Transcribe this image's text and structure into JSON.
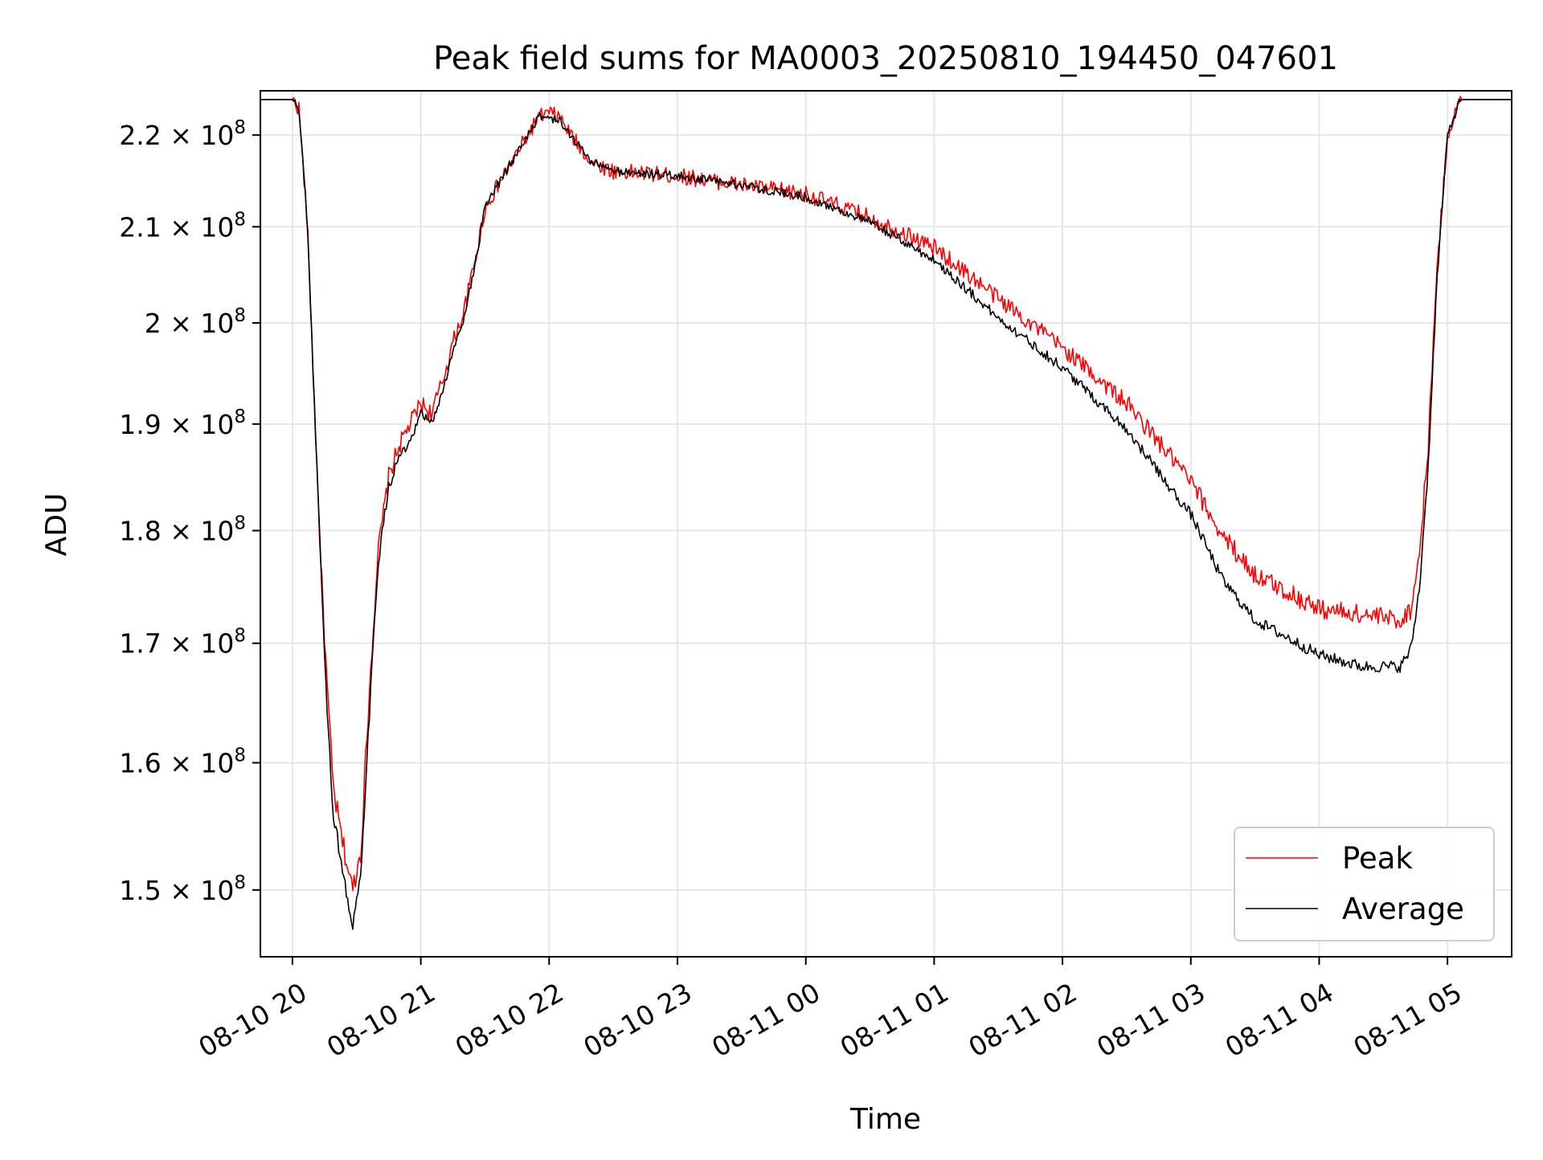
{
  "colors": {
    "background": "#ffffff",
    "grid": "#e6e6e6",
    "axes": "#000000",
    "peak": "#ff0000",
    "average": "#000000",
    "legend_border": "#cccccc"
  },
  "chart_data": {
    "type": "line",
    "title": "Peak field sums for MA0003_20250810_194450_047601",
    "xlabel": "Time",
    "ylabel": "ADU",
    "y_scale": "log",
    "grid": true,
    "legend_position": "lower-right",
    "x_range": [
      "2025-08-10 19:45",
      "2025-08-11 05:30"
    ],
    "y_range": [
      145000000,
      225000000
    ],
    "x_ticks": [
      {
        "value": "2025-08-10 20:00",
        "label": "08-10 20"
      },
      {
        "value": "2025-08-10 21:00",
        "label": "08-10 21"
      },
      {
        "value": "2025-08-10 22:00",
        "label": "08-10 22"
      },
      {
        "value": "2025-08-10 23:00",
        "label": "08-10 23"
      },
      {
        "value": "2025-08-11 00:00",
        "label": "08-11 00"
      },
      {
        "value": "2025-08-11 01:00",
        "label": "08-11 01"
      },
      {
        "value": "2025-08-11 02:00",
        "label": "08-11 02"
      },
      {
        "value": "2025-08-11 03:00",
        "label": "08-11 03"
      },
      {
        "value": "2025-08-11 04:00",
        "label": "08-11 04"
      },
      {
        "value": "2025-08-11 05:00",
        "label": "08-11 05"
      }
    ],
    "y_ticks": [
      {
        "value": 150000000,
        "mantissa": "1.5",
        "exp": "8"
      },
      {
        "value": 160000000,
        "mantissa": "1.6",
        "exp": "8"
      },
      {
        "value": 170000000,
        "mantissa": "1.7",
        "exp": "8"
      },
      {
        "value": 180000000,
        "mantissa": "1.8",
        "exp": "8"
      },
      {
        "value": 190000000,
        "mantissa": "1.9",
        "exp": "8"
      },
      {
        "value": 200000000,
        "mantissa": "2",
        "exp": "8"
      },
      {
        "value": 210000000,
        "mantissa": "2.1",
        "exp": "8"
      },
      {
        "value": 220000000,
        "mantissa": "2.2",
        "exp": "8"
      }
    ],
    "series": [
      {
        "name": "Peak",
        "color": "#ff0000",
        "noise": 900000,
        "x": [
          "2025-08-10 19:45",
          "2025-08-10 20:00",
          "2025-08-10 20:03",
          "2025-08-10 20:07",
          "2025-08-10 20:10",
          "2025-08-10 20:13",
          "2025-08-10 20:16",
          "2025-08-10 20:19",
          "2025-08-10 20:23",
          "2025-08-10 20:28",
          "2025-08-10 20:32",
          "2025-08-10 20:36",
          "2025-08-10 20:40",
          "2025-08-10 20:45",
          "2025-08-10 20:50",
          "2025-08-10 20:55",
          "2025-08-10 21:00",
          "2025-08-10 21:05",
          "2025-08-10 21:10",
          "2025-08-10 21:15",
          "2025-08-10 21:20",
          "2025-08-10 21:25",
          "2025-08-10 21:30",
          "2025-08-10 21:35",
          "2025-08-10 21:40",
          "2025-08-10 21:45",
          "2025-08-10 21:50",
          "2025-08-10 21:55",
          "2025-08-10 22:00",
          "2025-08-10 22:05",
          "2025-08-10 22:10",
          "2025-08-10 22:20",
          "2025-08-10 22:30",
          "2025-08-10 23:00",
          "2025-08-10 23:30",
          "2025-08-11 00:00",
          "2025-08-11 00:30",
          "2025-08-11 01:00",
          "2025-08-11 01:30",
          "2025-08-11 02:00",
          "2025-08-11 02:30",
          "2025-08-11 02:50",
          "2025-08-11 03:00",
          "2025-08-11 03:15",
          "2025-08-11 03:30",
          "2025-08-11 04:00",
          "2025-08-11 04:20",
          "2025-08-11 04:38",
          "2025-08-11 04:43",
          "2025-08-11 04:47",
          "2025-08-11 04:51",
          "2025-08-11 04:55",
          "2025-08-11 05:00",
          "2025-08-11 05:06",
          "2025-08-11 05:30"
        ],
        "values": [
          224000000,
          224000000,
          223000000,
          210000000,
          193000000,
          178000000,
          167000000,
          158000000,
          154000000,
          150000000,
          153000000,
          166000000,
          178000000,
          185000000,
          188000000,
          190000000,
          192000000,
          191000000,
          194000000,
          198000000,
          201000000,
          206000000,
          212000000,
          214000000,
          216000000,
          218000000,
          220000000,
          222000000,
          222500000,
          222000000,
          220000000,
          217000000,
          216000000,
          215500000,
          214500000,
          213500000,
          211000000,
          207800000,
          202500000,
          197500000,
          192000000,
          187000000,
          184500000,
          179500000,
          176000000,
          173000000,
          172500000,
          172000000,
          173000000,
          178000000,
          188000000,
          205000000,
          220000000,
          224000000,
          224000000
        ]
      },
      {
        "name": "Average",
        "color": "#000000",
        "noise": 500000,
        "x": [
          "2025-08-10 19:45",
          "2025-08-10 20:00",
          "2025-08-10 20:03",
          "2025-08-10 20:07",
          "2025-08-10 20:10",
          "2025-08-10 20:13",
          "2025-08-10 20:16",
          "2025-08-10 20:19",
          "2025-08-10 20:23",
          "2025-08-10 20:28",
          "2025-08-10 20:32",
          "2025-08-10 20:36",
          "2025-08-10 20:40",
          "2025-08-10 20:45",
          "2025-08-10 20:50",
          "2025-08-10 20:55",
          "2025-08-10 21:00",
          "2025-08-10 21:05",
          "2025-08-10 21:10",
          "2025-08-10 21:15",
          "2025-08-10 21:20",
          "2025-08-10 21:25",
          "2025-08-10 21:30",
          "2025-08-10 21:35",
          "2025-08-10 21:40",
          "2025-08-10 21:45",
          "2025-08-10 21:50",
          "2025-08-10 21:55",
          "2025-08-10 22:00",
          "2025-08-10 22:05",
          "2025-08-10 22:10",
          "2025-08-10 22:20",
          "2025-08-10 22:30",
          "2025-08-10 23:00",
          "2025-08-10 23:30",
          "2025-08-11 00:00",
          "2025-08-11 00:30",
          "2025-08-11 01:00",
          "2025-08-11 01:30",
          "2025-08-11 02:00",
          "2025-08-11 02:30",
          "2025-08-11 02:50",
          "2025-08-11 03:00",
          "2025-08-11 03:15",
          "2025-08-11 03:30",
          "2025-08-11 04:00",
          "2025-08-11 04:20",
          "2025-08-11 04:38",
          "2025-08-11 04:43",
          "2025-08-11 04:47",
          "2025-08-11 04:51",
          "2025-08-11 04:55",
          "2025-08-11 05:00",
          "2025-08-11 05:06",
          "2025-08-11 05:30"
        ],
        "values": [
          224000000,
          224000000,
          223000000,
          210000000,
          193000000,
          178000000,
          165000000,
          156000000,
          152000000,
          147000000,
          151000000,
          164000000,
          177000000,
          184000000,
          187000000,
          188000000,
          191000000,
          190000000,
          193000000,
          197000000,
          200500000,
          205500000,
          212000000,
          214000000,
          216000000,
          218000000,
          220000000,
          222000000,
          222000000,
          221500000,
          220000000,
          217000000,
          216000000,
          215500000,
          214500000,
          213200000,
          210500000,
          206500000,
          200500000,
          195500000,
          189500000,
          184000000,
          181500000,
          175500000,
          172000000,
          169000000,
          168000000,
          168000000,
          169500000,
          175000000,
          186000000,
          204000000,
          220000000,
          224000000,
          224000000
        ]
      }
    ]
  }
}
